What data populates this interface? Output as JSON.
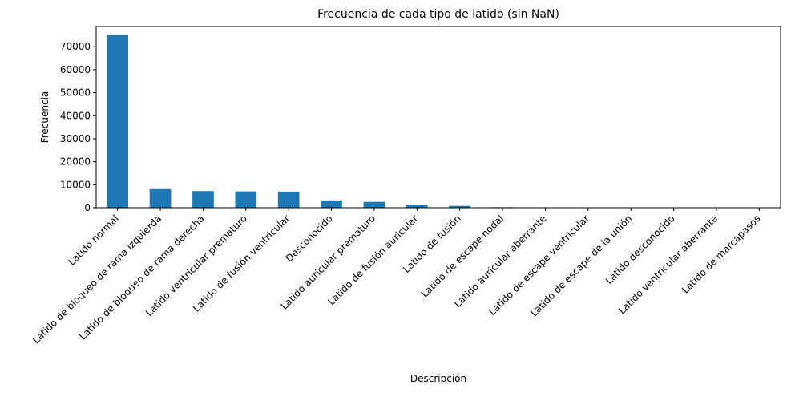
{
  "chart_data": {
    "type": "bar",
    "title": "Frecuencia de cada tipo de latido (sin NaN)",
    "xlabel": "Descripción",
    "ylabel": "Frecuencia",
    "categories": [
      "Latido normal",
      "Latido de bloqueo de rama izquierda",
      "Latido de bloqueo de rama derecha",
      "Latido ventricular prematuro",
      "Latido de fusión ventricular",
      "Desconocido",
      "Latido auricular prematuro",
      "Latido de fusión auricular",
      "Latido de fusión",
      "Latido de escape nodal",
      "Latido auricular aberrante",
      "Latido de escape ventricular",
      "Latido de escape de la unión",
      "Latido desconocido",
      "Latido ventricular aberrante",
      "Latido de marcapasos"
    ],
    "values": [
      75000,
      8100,
      7250,
      7100,
      7000,
      3200,
      2550,
      1050,
      800,
      230,
      150,
      106,
      80,
      33,
      16,
      2
    ],
    "ylim": [
      0,
      78800
    ],
    "yticks": [
      0,
      10000,
      20000,
      30000,
      40000,
      50000,
      60000,
      70000
    ],
    "ytick_labels": [
      "0",
      "10000",
      "20000",
      "30000",
      "40000",
      "50000",
      "60000",
      "70000"
    ],
    "bar_color": "#1f77b4",
    "grid": false,
    "legend": "none"
  }
}
